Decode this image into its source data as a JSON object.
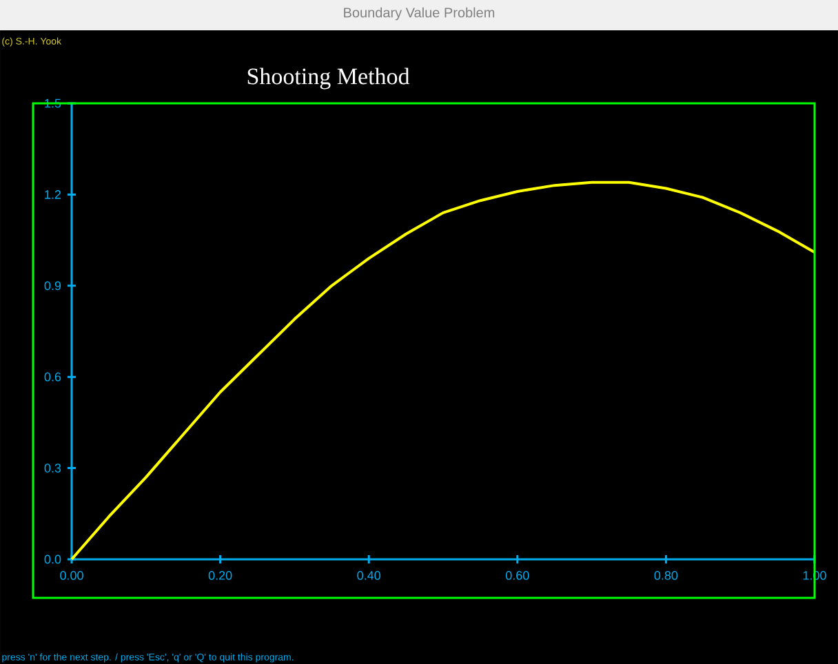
{
  "chart_data": {
    "type": "line",
    "title": "Shooting Method",
    "annotations": [
      "Boundary Value Problem",
      "(c) S.-H. Yook",
      "press 'n' for the next step. / press 'Esc', 'q' or 'Q' to quit this program."
    ],
    "x": [
      0,
      0.05,
      0.1,
      0.15,
      0.2,
      0.25,
      0.3,
      0.35,
      0.4,
      0.45,
      0.5,
      0.55,
      0.6,
      0.65,
      0.7,
      0.75,
      0.8,
      0.85,
      0.9,
      0.95,
      1.0
    ],
    "series": [
      {
        "color": "#ffff00",
        "values": [
          0,
          0.14,
          0.27,
          0.41,
          0.55,
          0.67,
          0.79,
          0.9,
          0.99,
          1.07,
          1.14,
          1.18,
          1.21,
          1.23,
          1.24,
          1.24,
          1.22,
          1.19,
          1.14,
          1.08,
          1.01
        ]
      }
    ],
    "xlim": [
      0,
      1
    ],
    "ylim": [
      0,
      1.5
    ],
    "xticks": [
      {
        "value": 0,
        "label": "0.00"
      },
      {
        "value": 0.2,
        "label": "0.20"
      },
      {
        "value": 0.4,
        "label": "0.40"
      },
      {
        "value": 0.6,
        "label": "0.60"
      },
      {
        "value": 0.8,
        "label": "0.80"
      },
      {
        "value": 1,
        "label": "1.00"
      }
    ],
    "yticks": [
      {
        "value": 0,
        "label": "0.0"
      },
      {
        "value": 0.3,
        "label": "0.3"
      },
      {
        "value": 0.6,
        "label": "0.6"
      },
      {
        "value": 0.9,
        "label": "0.9"
      },
      {
        "value": 1.2,
        "label": "1.2"
      },
      {
        "value": 1.5,
        "label": "1.5"
      }
    ]
  }
}
